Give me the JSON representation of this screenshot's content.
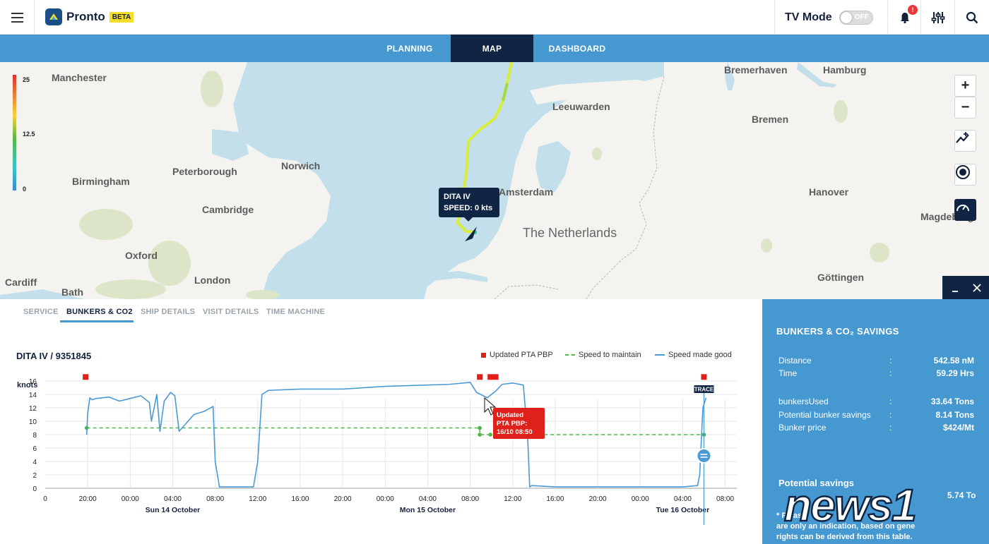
{
  "header": {
    "app_name": "Pronto",
    "beta_label": "BETA",
    "tv_mode_label": "TV Mode",
    "tv_toggle_state": "OFF",
    "notification_count": "!"
  },
  "nav": {
    "tabs": [
      {
        "label": "PLANNING",
        "active": false
      },
      {
        "label": "MAP",
        "active": true
      },
      {
        "label": "DASHBOARD",
        "active": false
      }
    ]
  },
  "map": {
    "speed_legend": {
      "max": "25",
      "mid": "12.5",
      "min": "0"
    },
    "cities": [
      "Manchester",
      "Birmingham",
      "Peterborough",
      "Norwich",
      "Cambridge",
      "Oxford",
      "London",
      "Cardiff",
      "Bath",
      "Amsterdam",
      "Leeuwarden",
      "Bremerhaven",
      "Hamburg",
      "Bremen",
      "Hanover",
      "Magdeburg",
      "Göttingen"
    ],
    "country_label": "The Netherlands",
    "ship_tooltip": {
      "name": "DITA IV",
      "speed": "SPEED: 0 kts"
    },
    "controls": [
      "zoom-in",
      "zoom-out",
      "route",
      "target",
      "speed"
    ],
    "route_colors": {
      "low": "#57b847",
      "high": "#f4ef3a"
    }
  },
  "lower_panel": {
    "tabs": [
      {
        "label": "SERVICE",
        "active": false
      },
      {
        "label": "BUNKERS & CO2",
        "active": true
      },
      {
        "label": "SHIP DETAILS",
        "active": false
      },
      {
        "label": "VISIT DETAILS",
        "active": false
      },
      {
        "label": "TIME MACHINE",
        "active": false
      }
    ],
    "vessel_title": "DITA IV / 9351845",
    "legend": {
      "updated_pta": "Updated PTA PBP",
      "speed_to_maintain": "Speed to maintain",
      "speed_made_good": "Speed made good"
    },
    "y_axis_label": "knots",
    "trace_label": "TRACE",
    "tooltip": {
      "line1": "Updated",
      "line2": "PTA PBP:",
      "line3": "16/10 08:50"
    }
  },
  "chart_data": {
    "type": "line",
    "ylabel": "knots",
    "ylim": [
      0,
      17
    ],
    "y_ticks": [
      0,
      2,
      4,
      6,
      8,
      10,
      12,
      14,
      16
    ],
    "x_ticks": [
      "20:00",
      "00:00",
      "04:00",
      "08:00",
      "12:00",
      "16:00",
      "20:00",
      "00:00",
      "04:00",
      "08:00",
      "12:00",
      "16:00",
      "20:00",
      "00:00",
      "04:00",
      "08:00"
    ],
    "x_first_tick": "0",
    "date_labels": [
      "Sun 14 October",
      "Mon 15 October",
      "Tue 16 October"
    ],
    "x_hours": [
      -28,
      -24,
      -20,
      -16,
      -12,
      -8,
      -4,
      0,
      4,
      8,
      12,
      16,
      20,
      24,
      28,
      32
    ],
    "series": [
      {
        "name": "Speed made good",
        "color": "#4a9ad4",
        "x": [
          -28.1,
          -28.0,
          -27.8,
          -27.6,
          -27.2,
          -26.0,
          -25.0,
          -24.0,
          -23.0,
          -22.2,
          -22.0,
          -21.5,
          -21.2,
          -20.8,
          -20.2,
          -19.8,
          -19.4,
          -18.0,
          -17.0,
          -16.2,
          -16.0,
          -15.6,
          -12.4,
          -12.0,
          -11.6,
          -11.0,
          -8.0,
          -4.0,
          0.0,
          4.0,
          6.0,
          8.0,
          8.6,
          9.6,
          10.4,
          11.0,
          12.0,
          13.0,
          13.4,
          13.6,
          13.8,
          16.0,
          20.0,
          24.0,
          28.0,
          29.4,
          29.6,
          29.9,
          30.2
        ],
        "y": [
          8.0,
          11.2,
          13.5,
          13.2,
          13.4,
          13.6,
          13.0,
          13.4,
          13.8,
          12.8,
          10.0,
          14.0,
          8.5,
          13.0,
          14.3,
          13.8,
          8.5,
          11.0,
          11.5,
          12.2,
          4.0,
          0.2,
          0.2,
          4.0,
          14.0,
          14.6,
          14.8,
          14.8,
          15.2,
          15.4,
          15.5,
          15.8,
          14.3,
          13.5,
          14.5,
          15.5,
          15.7,
          15.4,
          8.0,
          0.2,
          0.4,
          0.2,
          0.2,
          0.2,
          0.2,
          0.4,
          2.0,
          12.0,
          13.5
        ]
      },
      {
        "name": "Speed to maintain",
        "color": "#4cb847",
        "x": [
          -28.1,
          8.9,
          8.9,
          30.0
        ],
        "y": [
          9.0,
          9.0,
          8.0,
          8.0
        ]
      }
    ],
    "markers": {
      "name": "Updated PTA PBP",
      "color": "#e0201a",
      "x": [
        -28.2,
        8.9,
        9.9,
        10.4,
        30.0
      ],
      "y": [
        16.6,
        16.6,
        16.6,
        16.6,
        16.6
      ]
    },
    "grid": true,
    "legend_position": "top-right"
  },
  "right_panel": {
    "title": "BUNKERS & CO₂ SAVINGS",
    "rows": [
      {
        "label": "Distance",
        "value": "542.58 nM"
      },
      {
        "label": "Time",
        "value": "59.29 Hrs"
      },
      {
        "label": "bunkersUsed",
        "value": "33.64 Tons"
      },
      {
        "label": "Potential bunker savings",
        "value": "8.14 Tons"
      },
      {
        "label": "Bunker price",
        "value": "$424/Mt"
      }
    ],
    "separator": ":",
    "potential_savings_label": "Potential savings",
    "potential_savings_value": "5.74 To",
    "note_line1": "* Pleas",
    "note_line2": "are only an indication, based on gene",
    "note_line3": "rights can be derived from this table.",
    "watermark_text": "news1"
  }
}
